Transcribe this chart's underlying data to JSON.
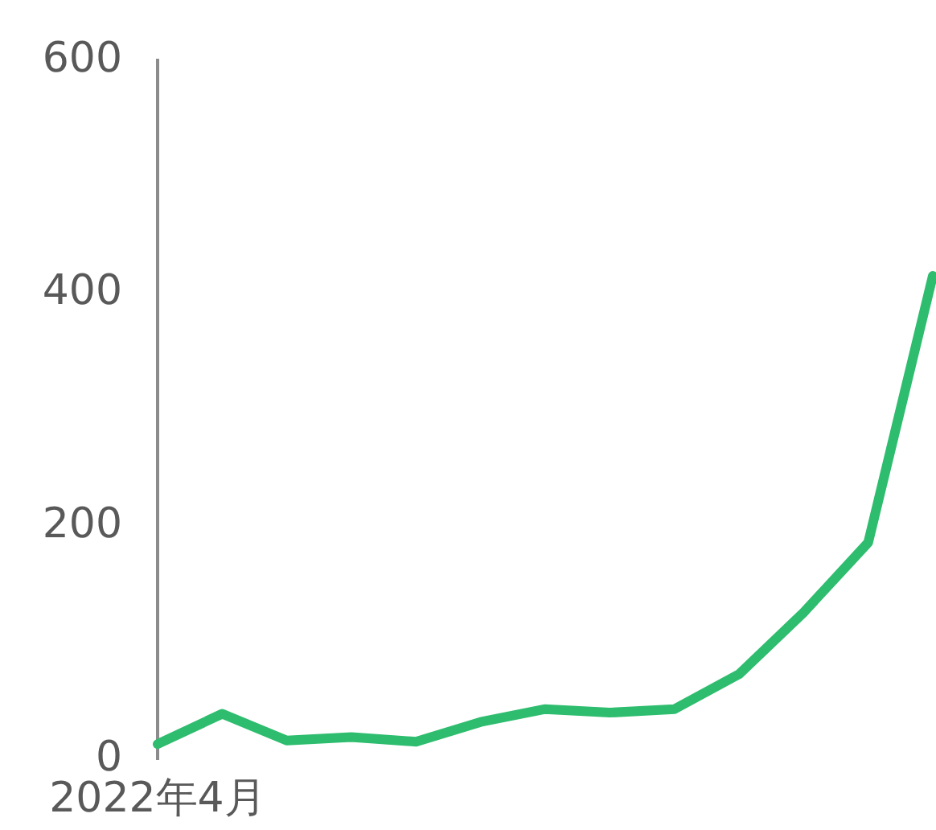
{
  "chart_data": {
    "type": "line",
    "categories": [
      "2022年4月",
      null,
      null,
      null,
      null,
      null,
      null,
      null,
      null,
      null,
      null,
      null,
      null
    ],
    "series": [
      {
        "color": "#2ebd6e",
        "values": [
          13,
          39,
          16,
          19,
          15,
          32,
          43,
          40,
          43,
          73,
          126,
          186,
          415
        ]
      }
    ],
    "ylim": [
      0,
      600
    ],
    "yticks": [
      0,
      200,
      400,
      600
    ],
    "grid": false,
    "legend": false,
    "marker": "none",
    "line_style": "solid"
  }
}
